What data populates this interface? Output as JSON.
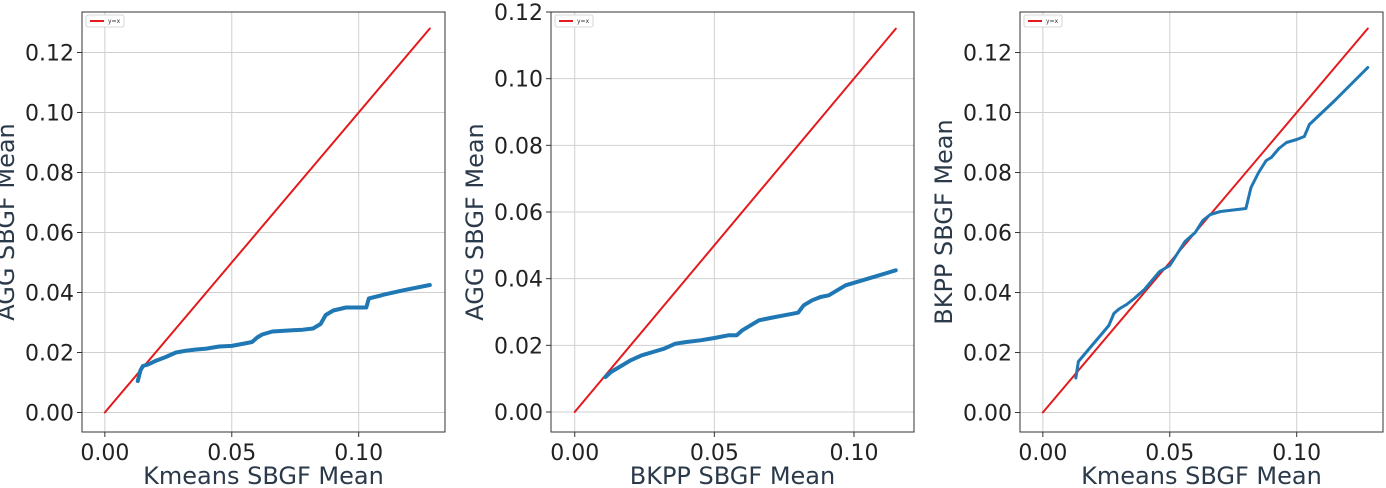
{
  "chart_data": [
    {
      "type": "line",
      "xlabel": "Kmeans SBGF Mean",
      "ylabel": "AGG SBGF Mean",
      "xlim": [
        -0.009,
        0.134
      ],
      "ylim": [
        -0.0065,
        0.1335
      ],
      "xticks": [
        {
          "v": 0.0,
          "label": "0.00"
        },
        {
          "v": 0.05,
          "label": "0.05"
        },
        {
          "v": 0.1,
          "label": "0.10"
        }
      ],
      "yticks": [
        {
          "v": 0.0,
          "label": "0.00"
        },
        {
          "v": 0.02,
          "label": "0.02"
        },
        {
          "v": 0.04,
          "label": "0.04"
        },
        {
          "v": 0.06,
          "label": "0.06"
        },
        {
          "v": 0.08,
          "label": "0.08"
        },
        {
          "v": 0.1,
          "label": "0.10"
        },
        {
          "v": 0.12,
          "label": "0.12"
        }
      ],
      "grid": true,
      "legend_position": "top-left",
      "series": [
        {
          "name": "y=x",
          "color": "#e41a1c",
          "width": 2,
          "x": [
            0.0,
            0.128
          ],
          "y": [
            0.0,
            0.128
          ]
        },
        {
          "color": "#1f77b4",
          "width": 4,
          "x": [
            0.013,
            0.014,
            0.015,
            0.017,
            0.02,
            0.024,
            0.028,
            0.032,
            0.036,
            0.04,
            0.045,
            0.05,
            0.055,
            0.058,
            0.06,
            0.062,
            0.066,
            0.07,
            0.074,
            0.078,
            0.082,
            0.085,
            0.087,
            0.09,
            0.095,
            0.1,
            0.103,
            0.104,
            0.11,
            0.118,
            0.128
          ],
          "y": [
            0.0105,
            0.014,
            0.0155,
            0.016,
            0.0172,
            0.0185,
            0.02,
            0.0206,
            0.021,
            0.0213,
            0.022,
            0.0222,
            0.023,
            0.0235,
            0.025,
            0.026,
            0.027,
            0.0272,
            0.0274,
            0.0276,
            0.028,
            0.0295,
            0.0325,
            0.034,
            0.035,
            0.035,
            0.035,
            0.038,
            0.0393,
            0.0408,
            0.0425
          ]
        }
      ]
    },
    {
      "type": "line",
      "xlabel": "BKPP SBGF Mean",
      "ylabel": "AGG SBGF Mean",
      "xlim": [
        -0.0085,
        0.1215
      ],
      "ylim": [
        -0.006,
        0.12
      ],
      "xticks": [
        {
          "v": 0.0,
          "label": "0.00"
        },
        {
          "v": 0.05,
          "label": "0.05"
        },
        {
          "v": 0.1,
          "label": "0.10"
        }
      ],
      "yticks": [
        {
          "v": 0.0,
          "label": "0.00"
        },
        {
          "v": 0.02,
          "label": "0.02"
        },
        {
          "v": 0.04,
          "label": "0.04"
        },
        {
          "v": 0.06,
          "label": "0.06"
        },
        {
          "v": 0.08,
          "label": "0.08"
        },
        {
          "v": 0.1,
          "label": "0.10"
        },
        {
          "v": 0.12,
          "label": "0.12"
        }
      ],
      "grid": true,
      "legend_position": "top-left",
      "series": [
        {
          "name": "y=x",
          "color": "#e41a1c",
          "width": 2,
          "x": [
            0.0,
            0.115
          ],
          "y": [
            0.0,
            0.115
          ]
        },
        {
          "color": "#1f77b4",
          "width": 4,
          "x": [
            0.011,
            0.013,
            0.016,
            0.02,
            0.024,
            0.028,
            0.032,
            0.036,
            0.04,
            0.045,
            0.05,
            0.055,
            0.058,
            0.06,
            0.063,
            0.066,
            0.07,
            0.075,
            0.08,
            0.082,
            0.085,
            0.088,
            0.091,
            0.094,
            0.097,
            0.105,
            0.115
          ],
          "y": [
            0.0105,
            0.012,
            0.0135,
            0.0155,
            0.017,
            0.018,
            0.019,
            0.0205,
            0.021,
            0.0215,
            0.0222,
            0.023,
            0.023,
            0.0245,
            0.026,
            0.0275,
            0.0282,
            0.029,
            0.0298,
            0.032,
            0.0335,
            0.0345,
            0.035,
            0.0365,
            0.038,
            0.04,
            0.0425
          ]
        }
      ]
    },
    {
      "type": "line",
      "xlabel": "Kmeans SBGF Mean",
      "ylabel": "BKPP SBGF Mean",
      "xlim": [
        -0.009,
        0.134
      ],
      "ylim": [
        -0.0065,
        0.1335
      ],
      "xticks": [
        {
          "v": 0.0,
          "label": "0.00"
        },
        {
          "v": 0.05,
          "label": "0.05"
        },
        {
          "v": 0.1,
          "label": "0.10"
        }
      ],
      "yticks": [
        {
          "v": 0.0,
          "label": "0.00"
        },
        {
          "v": 0.02,
          "label": "0.02"
        },
        {
          "v": 0.04,
          "label": "0.04"
        },
        {
          "v": 0.06,
          "label": "0.06"
        },
        {
          "v": 0.08,
          "label": "0.08"
        },
        {
          "v": 0.1,
          "label": "0.10"
        },
        {
          "v": 0.12,
          "label": "0.12"
        }
      ],
      "grid": true,
      "legend_position": "top-left",
      "series": [
        {
          "name": "y=x",
          "color": "#e41a1c",
          "width": 2,
          "x": [
            0.0,
            0.128
          ],
          "y": [
            0.0,
            0.128
          ]
        },
        {
          "color": "#1f77b4",
          "width": 3,
          "x": [
            0.013,
            0.014,
            0.016,
            0.018,
            0.02,
            0.022,
            0.024,
            0.026,
            0.028,
            0.03,
            0.033,
            0.036,
            0.04,
            0.043,
            0.046,
            0.05,
            0.053,
            0.056,
            0.06,
            0.063,
            0.066,
            0.07,
            0.075,
            0.08,
            0.082,
            0.085,
            0.088,
            0.09,
            0.093,
            0.096,
            0.1,
            0.103,
            0.105,
            0.115,
            0.128
          ],
          "y": [
            0.0115,
            0.017,
            0.019,
            0.021,
            0.023,
            0.025,
            0.027,
            0.029,
            0.033,
            0.0345,
            0.036,
            0.038,
            0.041,
            0.044,
            0.047,
            0.049,
            0.053,
            0.057,
            0.06,
            0.064,
            0.066,
            0.067,
            0.0675,
            0.068,
            0.075,
            0.08,
            0.084,
            0.085,
            0.088,
            0.09,
            0.091,
            0.092,
            0.096,
            0.104,
            0.115
          ]
        }
      ]
    }
  ]
}
